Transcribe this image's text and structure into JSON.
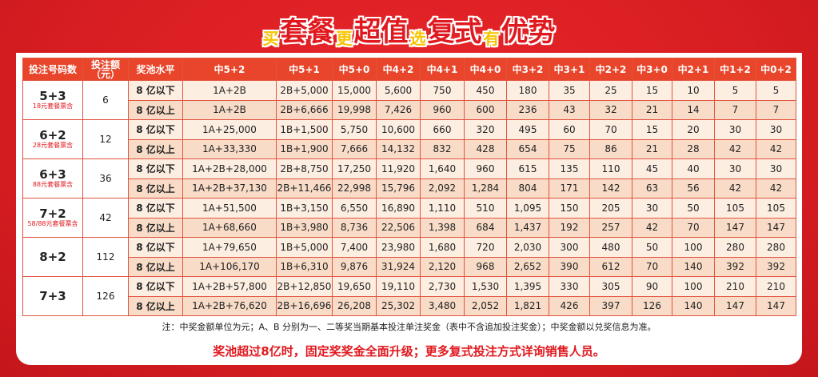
{
  "header": {
    "title_parts": [
      {
        "text": "买",
        "size": "small"
      },
      {
        "text": "套餐",
        "size": "big"
      },
      {
        "text": "更",
        "size": "small"
      },
      {
        "text": "超值",
        "size": "big"
      },
      {
        "text": "选",
        "size": "small"
      },
      {
        "text": "复式",
        "size": "big"
      },
      {
        "text": "有",
        "size": "small"
      },
      {
        "text": "优势",
        "size": "big"
      }
    ]
  },
  "table": {
    "columns": [
      "投注号码数",
      "投注额\n（元）",
      "奖池水平",
      "中5+2",
      "中5+1",
      "中5+0",
      "中4+2",
      "中4+1",
      "中4+0",
      "中3+2",
      "中3+1",
      "中2+2",
      "中3+0",
      "中2+1",
      "中1+2",
      "中0+2"
    ],
    "groups": [
      {
        "name": "5+3",
        "note": "18元套餐票含",
        "price": "6",
        "rows": [
          {
            "level": "8 亿以下",
            "cells": [
              "1A+2B",
              "2B+5,000",
              "15,000",
              "5,600",
              "750",
              "450",
              "180",
              "35",
              "25",
              "15",
              "10",
              "5",
              "5"
            ]
          },
          {
            "level": "8 亿以上",
            "cells": [
              "1A+2B",
              "2B+6,666",
              "19,998",
              "7,426",
              "960",
              "600",
              "236",
              "43",
              "32",
              "21",
              "14",
              "7",
              "7"
            ]
          }
        ]
      },
      {
        "name": "6+2",
        "note": "28元套餐票含",
        "price": "12",
        "rows": [
          {
            "level": "8 亿以下",
            "cells": [
              "1A+25,000",
              "1B+1,500",
              "5,750",
              "10,600",
              "660",
              "320",
              "495",
              "60",
              "70",
              "15",
              "20",
              "30",
              "30"
            ]
          },
          {
            "level": "8 亿以上",
            "cells": [
              "1A+33,330",
              "1B+1,900",
              "7,666",
              "14,132",
              "832",
              "428",
              "654",
              "75",
              "86",
              "21",
              "28",
              "42",
              "42"
            ]
          }
        ]
      },
      {
        "name": "6+3",
        "note": "88元套餐票含",
        "price": "36",
        "rows": [
          {
            "level": "8 亿以下",
            "cells": [
              "1A+2B+28,000",
              "2B+8,750",
              "17,250",
              "11,920",
              "1,640",
              "960",
              "615",
              "135",
              "110",
              "45",
              "40",
              "30",
              "30"
            ]
          },
          {
            "level": "8 亿以上",
            "cells": [
              "1A+2B+37,130",
              "2B+11,466",
              "22,998",
              "15,796",
              "2,092",
              "1,284",
              "804",
              "171",
              "142",
              "63",
              "56",
              "42",
              "42"
            ]
          }
        ]
      },
      {
        "name": "7+2",
        "note": "58/88元套餐票含",
        "price": "42",
        "rows": [
          {
            "level": "8 亿以下",
            "cells": [
              "1A+51,500",
              "1B+3,150",
              "6,550",
              "16,890",
              "1,110",
              "510",
              "1,095",
              "150",
              "205",
              "30",
              "50",
              "105",
              "105"
            ]
          },
          {
            "level": "8 亿以上",
            "cells": [
              "1A+68,660",
              "1B+3,980",
              "8,736",
              "22,506",
              "1,398",
              "684",
              "1,437",
              "192",
              "257",
              "42",
              "70",
              "147",
              "147"
            ]
          }
        ]
      },
      {
        "name": "8+2",
        "note": null,
        "price": "112",
        "rows": [
          {
            "level": "8 亿以下",
            "cells": [
              "1A+79,650",
              "1B+5,000",
              "7,400",
              "23,980",
              "1,680",
              "720",
              "2,030",
              "300",
              "480",
              "50",
              "100",
              "280",
              "280"
            ]
          },
          {
            "level": "8 亿以上",
            "cells": [
              "1A+106,170",
              "1B+6,310",
              "9,876",
              "31,924",
              "2,120",
              "968",
              "2,652",
              "390",
              "612",
              "70",
              "140",
              "392",
              "392"
            ]
          }
        ]
      },
      {
        "name": "7+3",
        "note": null,
        "price": "126",
        "rows": [
          {
            "level": "8 亿以下",
            "cells": [
              "1A+2B+57,800",
              "2B+12,850",
              "19,650",
              "19,110",
              "2,730",
              "1,530",
              "1,395",
              "330",
              "305",
              "90",
              "100",
              "210",
              "210"
            ]
          },
          {
            "level": "8 亿以上",
            "cells": [
              "1A+2B+76,620",
              "2B+16,696",
              "26,208",
              "25,302",
              "3,480",
              "2,052",
              "1,821",
              "426",
              "397",
              "126",
              "140",
              "147",
              "147"
            ]
          }
        ]
      }
    ]
  },
  "notes": [
    "注：中奖金额单位为元；A、B 分别为一、二等奖当期基本投注单注奖金（表中不含追加投注奖金）；中奖金额以兑奖信息为准。",
    "奖池超过8亿时，固定奖奖金全面升级；更多复式投注方式详询销售人员。"
  ]
}
